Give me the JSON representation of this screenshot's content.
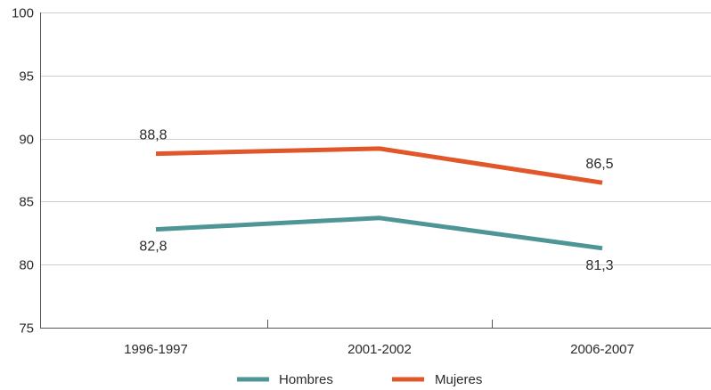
{
  "chart_data": {
    "type": "line",
    "categories": [
      "1996-1997",
      "2001-2002",
      "2006-2007"
    ],
    "series": [
      {
        "name": "Hombres",
        "values": [
          82.8,
          83.7,
          81.3
        ],
        "color": "#4e9695",
        "labels": [
          "82,8",
          null,
          "81,3"
        ]
      },
      {
        "name": "Mujeres",
        "values": [
          88.8,
          89.2,
          86.5
        ],
        "color": "#e2572a",
        "labels": [
          "88,8",
          null,
          "86,5"
        ]
      }
    ],
    "title": "",
    "xlabel": "",
    "ylabel": "",
    "ylim": [
      75,
      100
    ],
    "yticks": [
      "75",
      "80",
      "85",
      "90",
      "95",
      "100"
    ],
    "grid": true,
    "legend_position": "bottom"
  },
  "colors": {
    "grid": "#cfcfcf",
    "axis": "#555555"
  }
}
